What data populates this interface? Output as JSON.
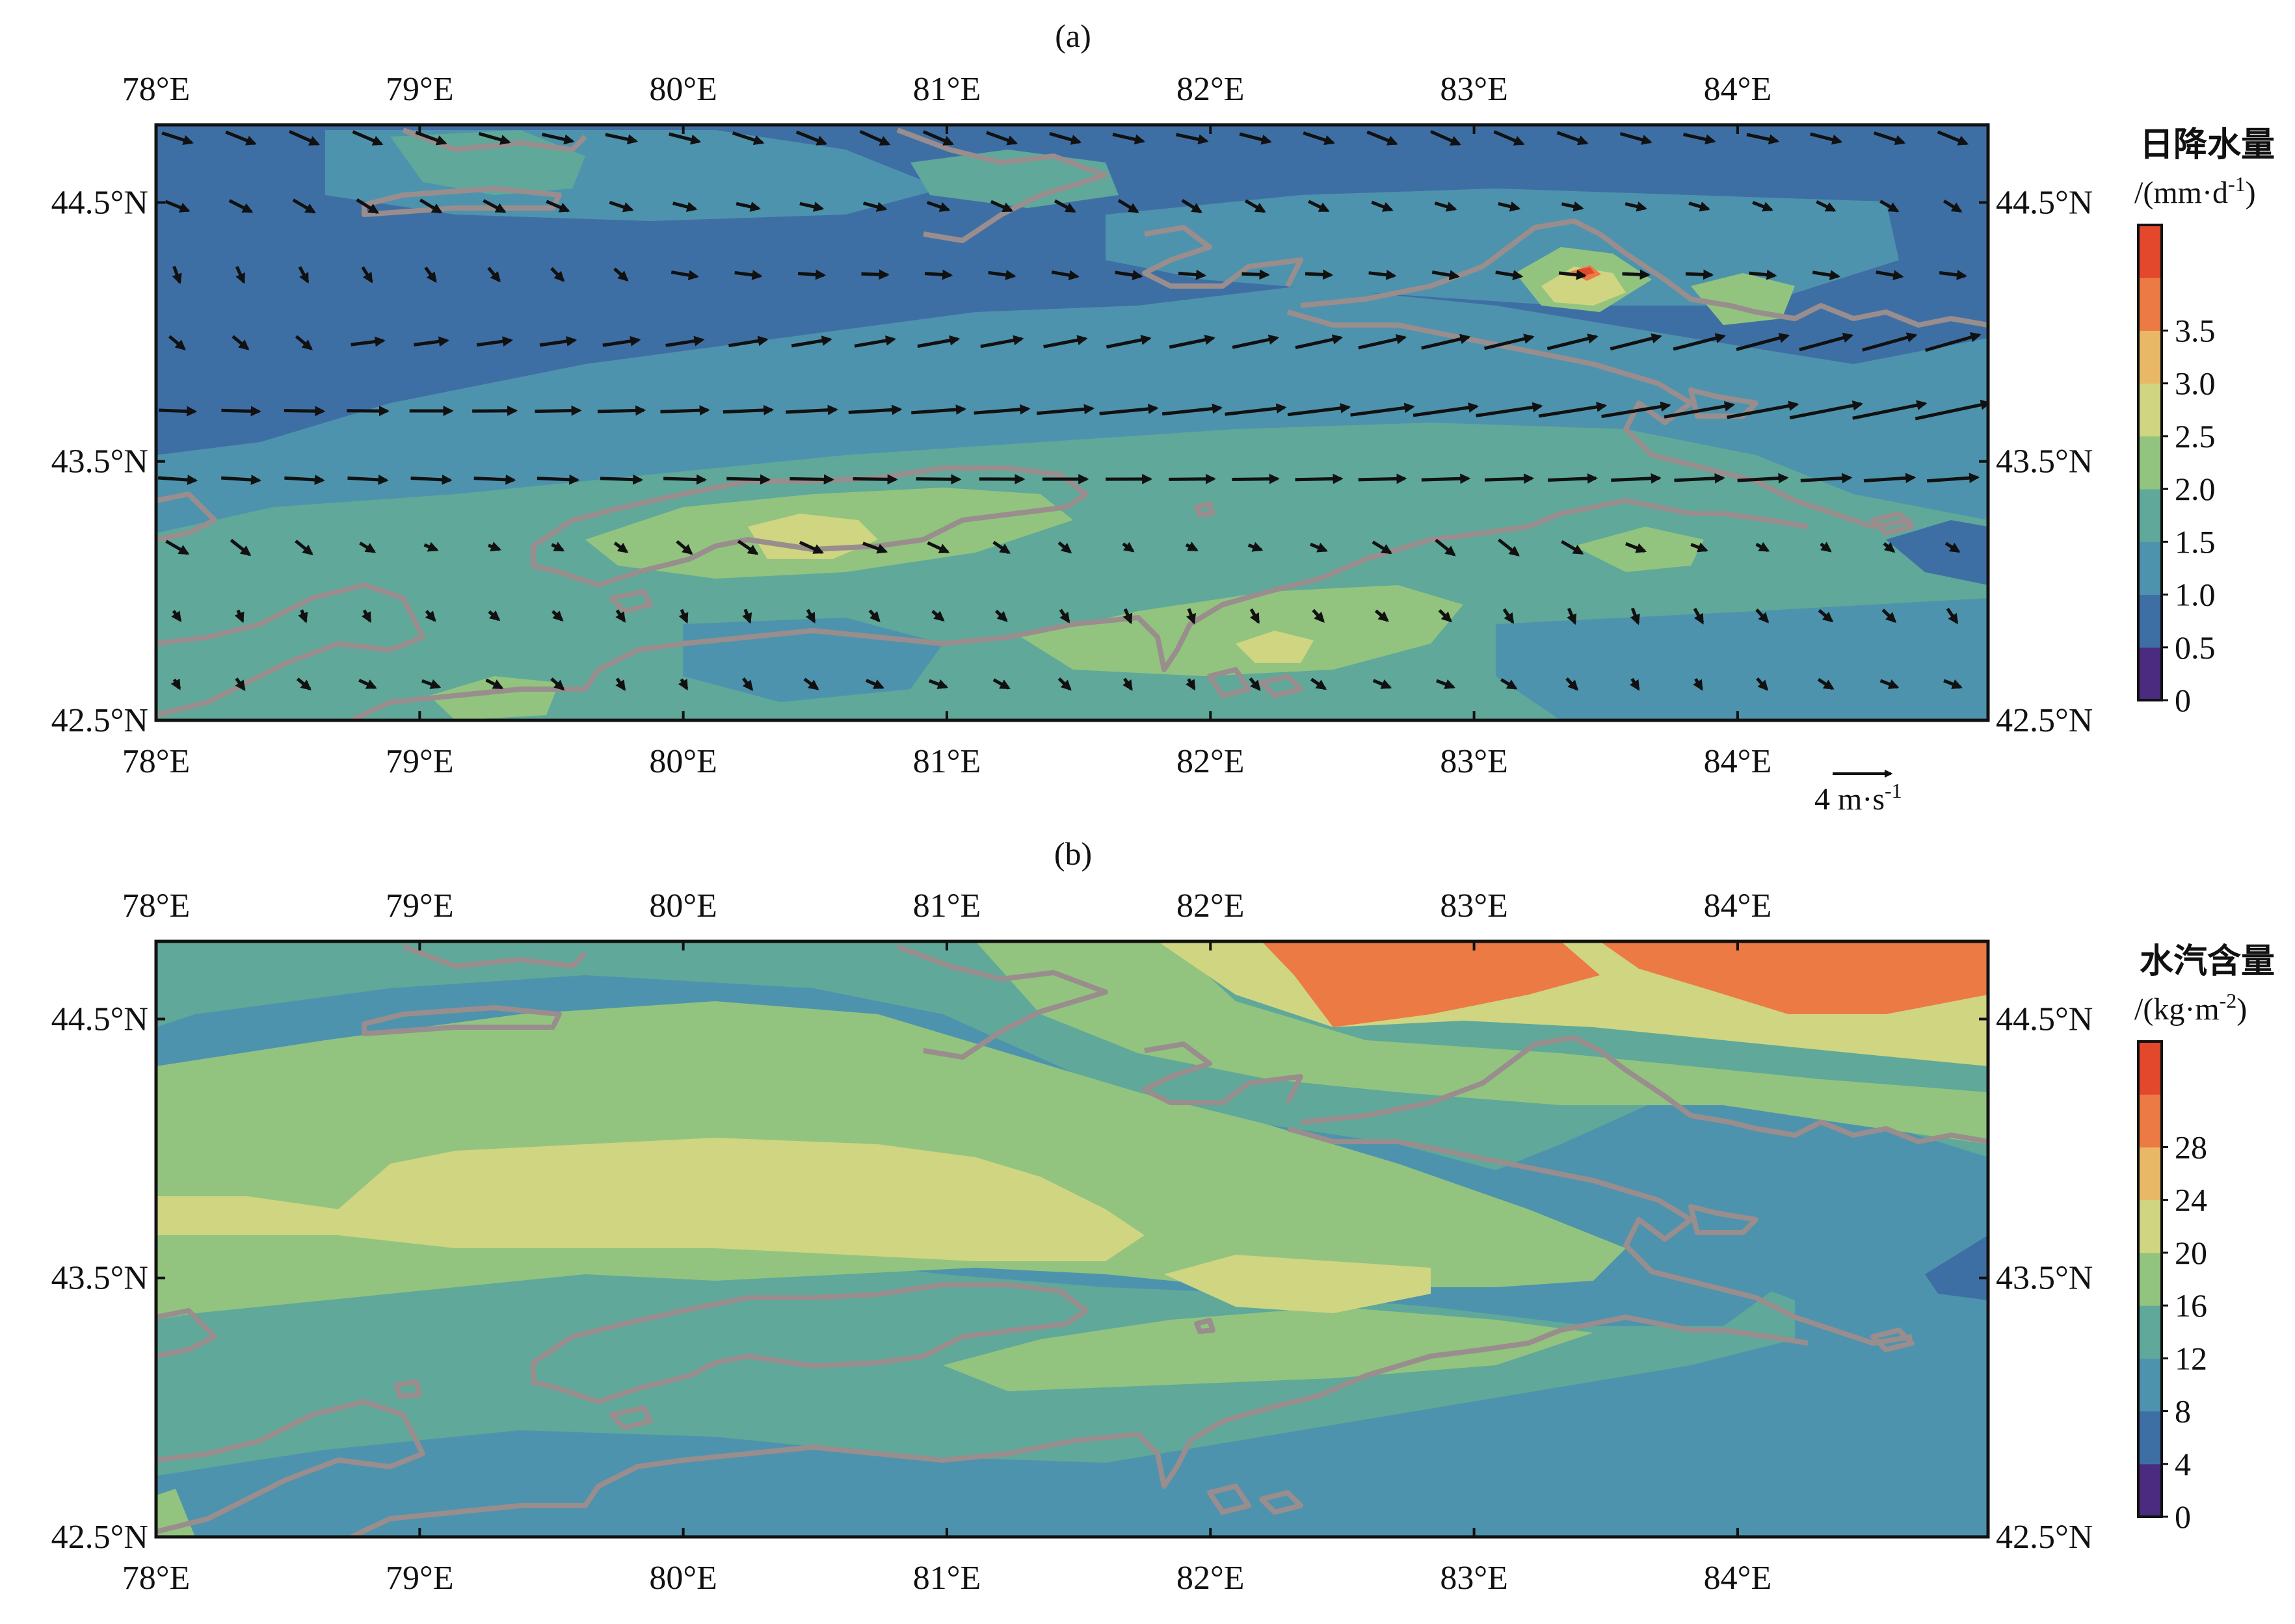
{
  "chart_data": [
    {
      "type": "heatmap",
      "panel_label": "(a)",
      "field": "daily precipitation (filled contours) with wind vectors",
      "x_ticks": [
        "78°E",
        "79°E",
        "80°E",
        "81°E",
        "82°E",
        "83°E",
        "84°E"
      ],
      "x_tick_values": [
        78,
        79,
        80,
        81,
        82,
        83,
        84
      ],
      "y_ticks": [
        "44.5°N",
        "43.5°N",
        "42.5°N"
      ],
      "y_tick_values": [
        44.5,
        43.5,
        42.5
      ],
      "xlim": [
        78,
        84.95
      ],
      "ylim": [
        42.5,
        44.8
      ],
      "colorbar": {
        "title": "日降水量",
        "unit_prefix": "/(mm·d",
        "unit_sup": "-1",
        "unit_suffix": ")",
        "levels": [
          0,
          0.5,
          1.0,
          1.5,
          2.0,
          2.5,
          3.0,
          3.5
        ],
        "labels": [
          "0",
          "0.5",
          "1.0",
          "1.5",
          "2.0",
          "2.5",
          "3.0",
          "3.5"
        ],
        "colors": [
          "#4b2b7f",
          "#3e6fa4",
          "#4e93ad",
          "#5fa89a",
          "#92c47f",
          "#cfd581",
          "#e9b866",
          "#ec7a44",
          "#e3472c"
        ]
      },
      "wind_reference": {
        "value": 4,
        "label_prefix": "4 m·s",
        "label_sup": "-1"
      },
      "precip_maxima": [
        {
          "lon": 83.45,
          "lat": 44.27,
          "value": 3.5
        },
        {
          "lon": 80.6,
          "lat": 43.25,
          "value": 2.5
        },
        {
          "lon": 82.4,
          "lat": 42.85,
          "value": 2.3
        },
        {
          "lon": 79.5,
          "lat": 44.65,
          "value": 2.0
        },
        {
          "lon": 84.1,
          "lat": 44.1,
          "value": 2.0
        }
      ]
    },
    {
      "type": "heatmap",
      "panel_label": "(b)",
      "field": "water vapour content (filled contours)",
      "x_ticks": [
        "78°E",
        "79°E",
        "80°E",
        "81°E",
        "82°E",
        "83°E",
        "84°E"
      ],
      "x_tick_values": [
        78,
        79,
        80,
        81,
        82,
        83,
        84
      ],
      "y_ticks": [
        "44.5°N",
        "43.5°N",
        "42.5°N"
      ],
      "y_tick_values": [
        44.5,
        43.5,
        42.5
      ],
      "xlim": [
        78,
        84.95
      ],
      "ylim": [
        42.5,
        44.8
      ],
      "colorbar": {
        "title": "水汽含量",
        "unit_prefix": "/(kg·m",
        "unit_sup": "-2",
        "unit_suffix": ")",
        "levels": [
          0,
          4,
          8,
          12,
          16,
          20,
          24,
          28
        ],
        "labels": [
          "0",
          "4",
          "8",
          "12",
          "16",
          "20",
          "24",
          "28"
        ],
        "colors": [
          "#4b2b7f",
          "#3e6fa4",
          "#4e93ad",
          "#5fa89a",
          "#92c47f",
          "#cfd581",
          "#e9b866",
          "#ec7a44",
          "#e3472c"
        ]
      }
    }
  ]
}
